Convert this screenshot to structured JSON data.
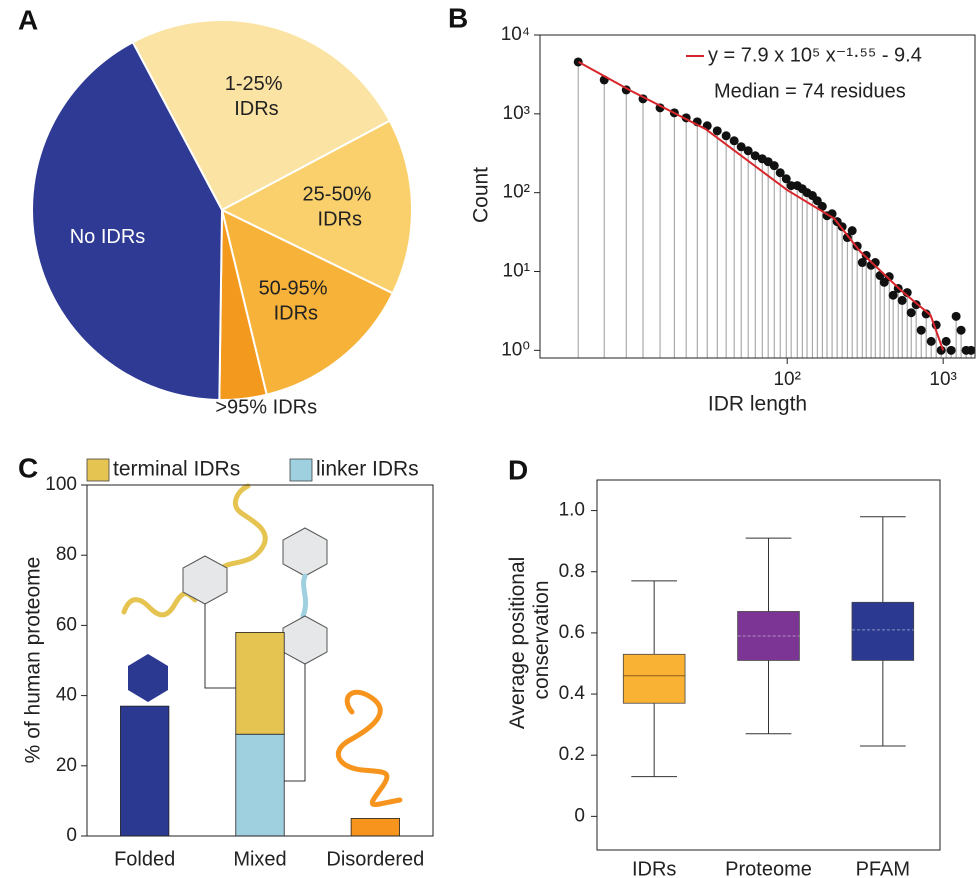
{
  "chart_data": [
    {
      "type": "pie",
      "panel": "A",
      "categories": [
        "1-25% IDRs",
        "25-50% IDRs",
        "50-95% IDRs",
        ">95% IDRs",
        "No IDRs"
      ],
      "values": [
        25,
        15,
        14,
        4,
        42
      ],
      "colors": [
        "#fbe3a4",
        "#f9d06b",
        "#f7b23a",
        "#f39a1e",
        "#2e3a93"
      ]
    },
    {
      "type": "scatter",
      "panel": "B",
      "x": [
        4.57,
        6.71,
        9.29,
        11.9,
        15.3,
        18.9,
        22.5,
        26.5,
        30.7,
        35.6,
        40.6,
        45.7,
        50.7,
        56.2,
        62.4,
        69.2,
        75.5,
        82.6,
        90.2,
        98.6,
        106,
        116,
        125,
        134,
        145,
        156,
        168,
        180,
        194,
        209,
        225,
        243,
        261,
        281,
        303,
        321,
        345,
        367,
        394,
        419,
        451,
        478,
        515,
        546,
        588,
        624,
        671,
        723,
        778,
        838,
        902,
        971,
        1045,
        1125,
        1211,
        1303,
        1403,
        1510
      ],
      "y": [
        4550,
        2692,
        2013,
        1549,
        1191,
        1030,
        890,
        792,
        705,
        609,
        527,
        455,
        382,
        340,
        294,
        269,
        247,
        220,
        179,
        150,
        123,
        123,
        112,
        100,
        92,
        79,
        67,
        51,
        54,
        43,
        37,
        27,
        33,
        21,
        13,
        16,
        12,
        13,
        8.9,
        7.3,
        8.6,
        5.0,
        6.1,
        4.3,
        5.4,
        3.0,
        3.8,
        1.8,
        2.9,
        1.3,
        2.1,
        1,
        1.3,
        1,
        2.7,
        1.8,
        1,
        1
      ],
      "color": "#111111",
      "stem_color": "#9a9a9a",
      "fit": {
        "name": "y = 7.9 x 10⁵ x⁻¹·⁵⁵ - 9.4",
        "color": "#d7262b",
        "x": [
          4.6,
          10,
          30,
          100,
          200,
          293,
          540,
          830,
          1000
        ],
        "y": [
          4550,
          1950,
          640,
          108,
          47,
          18,
          5.7,
          2.8,
          1
        ]
      },
      "annotation": "Median = 74 residues",
      "xlabel": "IDR length",
      "ylabel": "Count",
      "xscale": "log",
      "yscale": "log",
      "xlim": [
        2.6,
        1600
      ],
      "ylim": [
        0.8,
        10000
      ],
      "xticks": [
        {
          "value": 100,
          "label": "10²"
        },
        {
          "value": 1000,
          "label": "10³"
        }
      ],
      "yticks": [
        {
          "value": 1,
          "label": "10⁰"
        },
        {
          "value": 10,
          "label": "10¹"
        },
        {
          "value": 100,
          "label": "10²"
        },
        {
          "value": 1000,
          "label": "10³"
        },
        {
          "value": 10000,
          "label": "10⁴"
        }
      ]
    },
    {
      "type": "bar",
      "panel": "C",
      "categories": [
        "Folded",
        "Mixed",
        "Disordered"
      ],
      "values": [
        37,
        null,
        5
      ],
      "colors": [
        "#2b3990",
        null,
        "#f7941d"
      ],
      "series": [
        {
          "name": "terminal IDRs",
          "color": "#e5c452",
          "values": [
            null,
            29,
            null
          ]
        },
        {
          "name": "linker IDRs",
          "color": "#9fd0e0",
          "values": [
            null,
            29,
            null
          ]
        }
      ],
      "ylabel": "% of human proteome",
      "ylim": [
        0,
        100
      ],
      "yticks": [
        0,
        20,
        40,
        60,
        80,
        100
      ]
    },
    {
      "type": "box",
      "panel": "D",
      "categories": [
        "IDRs",
        "Proteome",
        "PFAM"
      ],
      "whisker_low": [
        0.13,
        0.27,
        0.23
      ],
      "q1": [
        0.37,
        0.51,
        0.51
      ],
      "median": [
        0.46,
        0.59,
        0.61
      ],
      "q3": [
        0.53,
        0.67,
        0.7
      ],
      "whisker_high": [
        0.77,
        0.91,
        0.98
      ],
      "colors": [
        "#f9b233",
        "#7d3595",
        "#2b3990"
      ],
      "ylabel": "Average positional conservation",
      "ylim": [
        -0.11,
        1.1
      ],
      "yticks": [
        0,
        0.2,
        0.4,
        0.6,
        0.8,
        {
          "value": 1,
          "label": "1.0"
        }
      ]
    }
  ]
}
